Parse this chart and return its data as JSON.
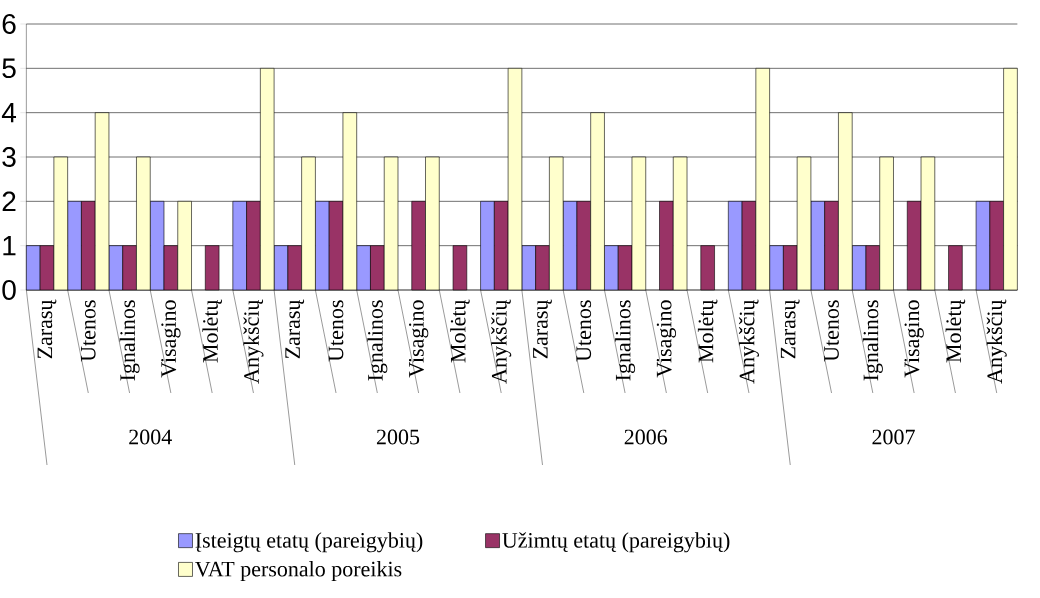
{
  "chart_data": {
    "type": "bar",
    "categories": [
      "Zarasų",
      "Utenos",
      "Ignalinos",
      "Visagino",
      "Molėtų",
      "Anykščių",
      "Zarasų",
      "Utenos",
      "Ignalinos",
      "Visagino",
      "Molėtų",
      "Anykščių",
      "Zarasų",
      "Utenos",
      "Ignalinos",
      "Visagino",
      "Molėtų",
      "Anykščių",
      "Zarasų",
      "Utenos",
      "Ignalinos",
      "Visagino",
      "Molėtų",
      "Anykščių"
    ],
    "series": [
      {
        "name": "Įsteigtų etatų (pareigybių)",
        "color": "#9999ff",
        "values": [
          1,
          2,
          1,
          2,
          null,
          2,
          1,
          2,
          1,
          null,
          null,
          2,
          1,
          2,
          1,
          null,
          null,
          2,
          1,
          2,
          1,
          null,
          null,
          2
        ]
      },
      {
        "name": "Užimtų etatų (pareigybių)",
        "color": "#993366",
        "values": [
          1,
          2,
          1,
          1,
          1,
          2,
          1,
          2,
          1,
          2,
          1,
          2,
          1,
          2,
          1,
          2,
          1,
          2,
          1,
          2,
          1,
          2,
          1,
          2
        ]
      },
      {
        "name": "VAT personalo poreikis",
        "color": "#ffffcc",
        "values": [
          3,
          4,
          3,
          2,
          null,
          5,
          3,
          4,
          3,
          3,
          null,
          5,
          3,
          4,
          3,
          3,
          null,
          5,
          3,
          4,
          3,
          3,
          null,
          5
        ]
      }
    ],
    "annotations": [
      "2004",
      "2005",
      "2006",
      "2007"
    ],
    "ylim": [
      0,
      6
    ],
    "yticks": [
      0,
      1,
      2,
      3,
      4,
      5,
      6
    ],
    "grid": "y",
    "legend": "bottom"
  }
}
